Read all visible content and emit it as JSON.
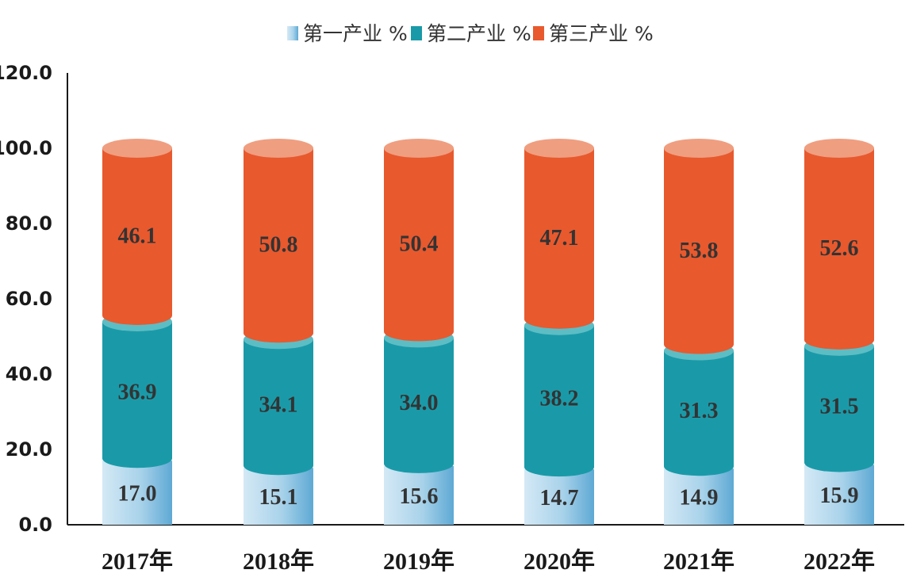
{
  "chart_data": {
    "type": "bar",
    "stacked": true,
    "title": "",
    "xlabel": "",
    "ylabel": "",
    "ylim": [
      0,
      120
    ],
    "yticks": [
      "0.0",
      "20.0",
      "40.0",
      "60.0",
      "80.0",
      "100.0",
      "120.0"
    ],
    "categories": [
      "2017年",
      "2018年",
      "2019年",
      "2020年",
      "2021年",
      "2022年"
    ],
    "legend_position": "top-center",
    "grid": false,
    "series": [
      {
        "name": "第一产业 %",
        "values": [
          17.0,
          15.1,
          15.6,
          14.7,
          14.9,
          15.9
        ],
        "labels": [
          "17.0",
          "15.1",
          "15.6",
          "14.7",
          "14.9",
          "15.9"
        ],
        "color": "#8fc4e3"
      },
      {
        "name": "第二产业 %",
        "values": [
          36.9,
          34.1,
          34.0,
          38.2,
          31.3,
          31.5
        ],
        "labels": [
          "36.9",
          "34.1",
          "34.0",
          "38.2",
          "31.3",
          "31.5"
        ],
        "color": "#1a9aa8"
      },
      {
        "name": "第三产业 %",
        "values": [
          46.1,
          50.8,
          50.4,
          47.1,
          53.8,
          52.6
        ],
        "labels": [
          "46.1",
          "50.8",
          "50.4",
          "47.1",
          "53.8",
          "52.6"
        ],
        "color": "#e8592e"
      }
    ]
  }
}
